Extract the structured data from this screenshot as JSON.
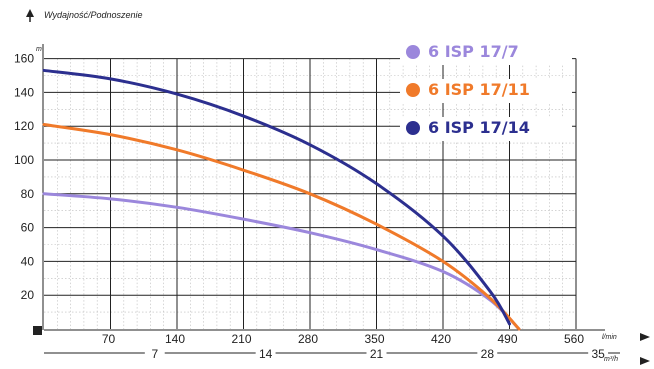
{
  "chart_data": {
    "type": "line",
    "ylabel": "Wydajność/Podnoszenie",
    "yunit": "m",
    "xunit_primary": "l/min",
    "xunit_secondary": "m³/h",
    "ylim": [
      0,
      160
    ],
    "xlim": [
      0,
      560
    ],
    "yticks": [
      20,
      40,
      60,
      80,
      100,
      120,
      140,
      160
    ],
    "xticks_primary": [
      70,
      140,
      210,
      280,
      350,
      420,
      490,
      560
    ],
    "xticks_secondary": [
      7,
      14,
      21,
      28,
      35
    ],
    "grid": true,
    "legend_position": "top-right",
    "series": [
      {
        "name": "6 ISP 17/7",
        "color": "#9b87dc",
        "x": [
          0,
          70,
          140,
          210,
          280,
          350,
          420,
          470,
          500
        ],
        "y": [
          80,
          77,
          72,
          65,
          57,
          47,
          34,
          17,
          0
        ]
      },
      {
        "name": "6 ISP 17/11",
        "color": "#f07a2a",
        "x": [
          0,
          70,
          140,
          210,
          280,
          350,
          420,
          470,
          500
        ],
        "y": [
          121,
          115,
          106,
          94,
          80,
          62,
          40,
          18,
          0
        ]
      },
      {
        "name": "6 ISP 17/14",
        "color": "#2c2f8f",
        "x": [
          0,
          70,
          140,
          210,
          280,
          350,
          420,
          470,
          490
        ],
        "y": [
          153,
          148,
          139,
          126,
          109,
          86,
          55,
          22,
          3
        ]
      }
    ]
  }
}
